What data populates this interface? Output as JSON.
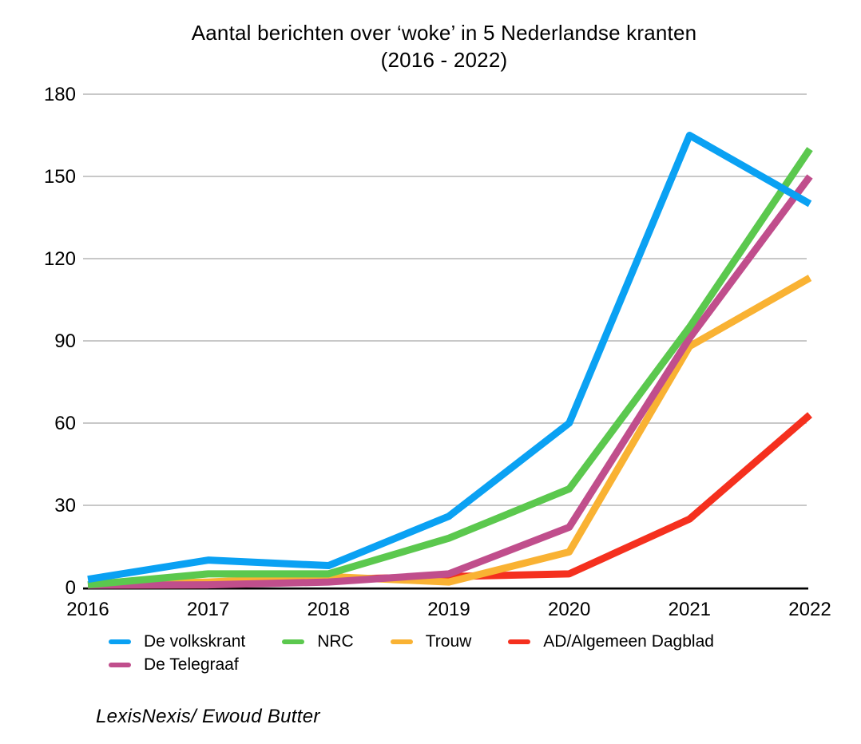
{
  "title": {
    "line1": "Aantal berichten over ‘woke’ in 5 Nederlandse kranten",
    "line2": "(2016 - 2022)"
  },
  "source": "LexisNexis/ Ewoud Butter",
  "colors": {
    "grid": "#C8C8C8",
    "axis": "#000000",
    "text": "#000000",
    "background": "#FFFFFF"
  },
  "chart_data": {
    "type": "line",
    "title": "Aantal berichten over ‘woke’ in 5 Nederlandse kranten (2016 - 2022)",
    "xlabel": "",
    "ylabel": "",
    "x": [
      2016,
      2017,
      2018,
      2019,
      2020,
      2021,
      2022
    ],
    "ylim": [
      0,
      180
    ],
    "yticks": [
      0,
      30,
      60,
      90,
      120,
      150,
      180
    ],
    "grid": true,
    "legend_position": "bottom",
    "series": [
      {
        "name": "De volkskrant",
        "color": "#0AA1F3",
        "values": [
          3,
          10,
          8,
          26,
          60,
          165,
          140
        ]
      },
      {
        "name": "NRC",
        "color": "#5BC84E",
        "values": [
          1,
          5,
          5,
          18,
          36,
          95,
          160
        ]
      },
      {
        "name": "Trouw",
        "color": "#F9B233",
        "values": [
          0,
          2,
          4,
          2,
          13,
          88,
          113
        ]
      },
      {
        "name": "AD/Algemeen Dagblad",
        "color": "#F5301E",
        "values": [
          0,
          1,
          3,
          4,
          5,
          25,
          63
        ]
      },
      {
        "name": "De Telegraaf",
        "color": "#C04E8C",
        "values": [
          0,
          1,
          2,
          5,
          22,
          91,
          150
        ]
      }
    ]
  }
}
